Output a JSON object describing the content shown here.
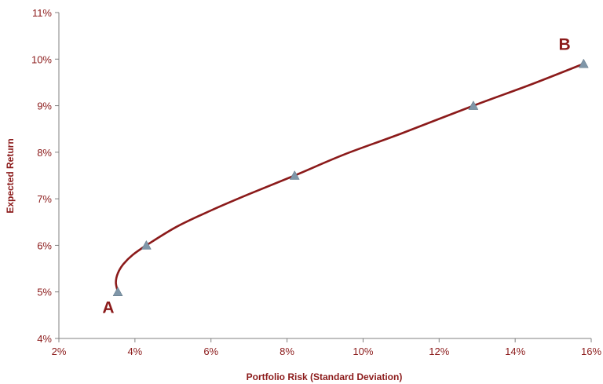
{
  "chart_data": {
    "type": "line",
    "title": "",
    "xlabel": "Portfolio Risk (Standard Deviation)",
    "ylabel": "Expected Return",
    "xlim": [
      2,
      16
    ],
    "ylim": [
      4,
      11
    ],
    "grid": false,
    "x_ticks": [
      "2%",
      "4%",
      "6%",
      "8%",
      "10%",
      "12%",
      "14%",
      "16%"
    ],
    "y_ticks": [
      "4%",
      "5%",
      "6%",
      "7%",
      "8%",
      "9%",
      "10%",
      "11%"
    ],
    "series": [
      {
        "x": [
          3.55,
          3.5,
          3.55,
          3.7,
          3.95,
          4.3,
          5.1,
          6.0,
          7.0,
          8.2,
          9.5,
          11.0,
          12.9,
          14.4,
          15.8
        ],
        "y": [
          5.0,
          5.2,
          5.4,
          5.6,
          5.8,
          6.0,
          6.4,
          6.75,
          7.1,
          7.5,
          7.95,
          8.4,
          9.0,
          9.45,
          9.9
        ]
      }
    ],
    "markers": {
      "x": [
        3.55,
        4.3,
        8.2,
        12.9,
        15.8
      ],
      "y": [
        5.0,
        6.0,
        7.5,
        9.0,
        9.9
      ]
    },
    "annotations": [
      {
        "text": "A",
        "x": 3.3,
        "y": 4.55
      },
      {
        "text": "B",
        "x": 15.3,
        "y": 10.2
      }
    ],
    "colors": {
      "line": "#8b1a1a",
      "marker": "#7f96a8",
      "text": "#8b1a1a",
      "axis": "#808080"
    }
  }
}
